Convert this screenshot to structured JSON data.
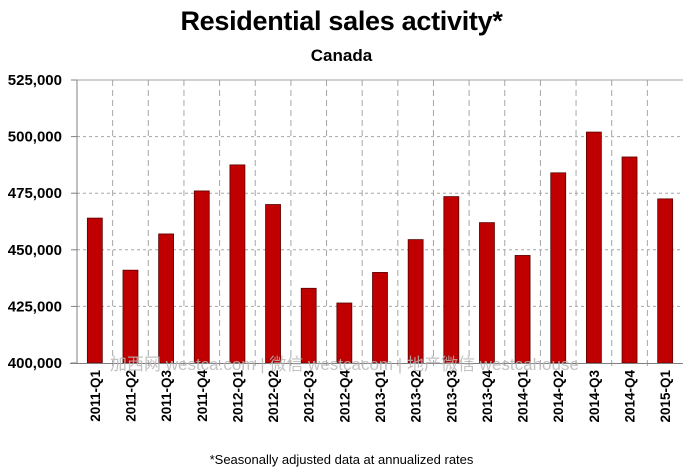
{
  "chart_data": {
    "type": "bar",
    "title": "Residential sales activity*",
    "subtitle": "Canada",
    "footnote": "*Seasonally adjusted data at annualized rates",
    "xlabel": "",
    "ylabel": "",
    "ylim": [
      400000,
      525000
    ],
    "yticks": [
      400000,
      425000,
      450000,
      475000,
      500000,
      525000
    ],
    "ytick_labels": [
      "400,000",
      "425,000",
      "450,000",
      "475,000",
      "500,000",
      "525,000"
    ],
    "grid": true,
    "categories": [
      "2011-Q1",
      "2011-Q2",
      "2011-Q3",
      "2011-Q4",
      "2012-Q1",
      "2012-Q2",
      "2012-Q3",
      "2012-Q4",
      "2013-Q1",
      "2013-Q2",
      "2013-Q3",
      "2013-Q4",
      "2014-Q1",
      "2014-Q2",
      "2014-Q3",
      "2014-Q4",
      "2015-Q1"
    ],
    "series": [
      {
        "name": "Residential sales activity",
        "color": "#c00000",
        "values": [
          464000,
          441000,
          457000,
          476000,
          487500,
          470000,
          433000,
          426500,
          440000,
          454500,
          473500,
          462000,
          447500,
          484000,
          502000,
          491000,
          472500
        ]
      }
    ]
  },
  "watermark": "加西网 westca.com | 微信 westcacom | 地产微信 westcahouse"
}
